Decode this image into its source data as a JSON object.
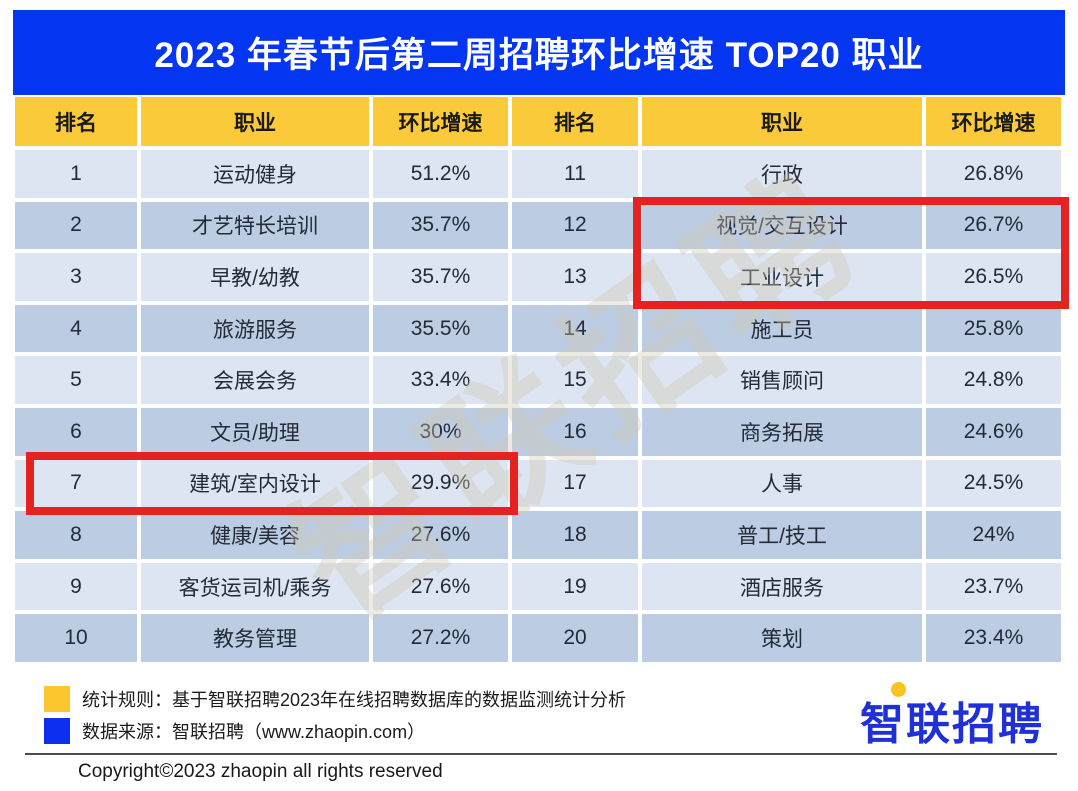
{
  "title": "2023 年春节后第二周招聘环比增速 TOP20 职业",
  "table": {
    "headers": [
      "排名",
      "职业",
      "环比增速",
      "排名",
      "职业",
      "环比增速"
    ],
    "left_rows": [
      {
        "rank": "1",
        "job": "运动健身",
        "growth": "51.2%"
      },
      {
        "rank": "2",
        "job": "才艺特长培训",
        "growth": "35.7%"
      },
      {
        "rank": "3",
        "job": "早教/幼教",
        "growth": "35.7%"
      },
      {
        "rank": "4",
        "job": "旅游服务",
        "growth": "35.5%"
      },
      {
        "rank": "5",
        "job": "会展会务",
        "growth": "33.4%"
      },
      {
        "rank": "6",
        "job": "文员/助理",
        "growth": "30%"
      },
      {
        "rank": "7",
        "job": "建筑/室内设计",
        "growth": "29.9%"
      },
      {
        "rank": "8",
        "job": "健康/美容",
        "growth": "27.6%"
      },
      {
        "rank": "9",
        "job": "客货运司机/乘务",
        "growth": "27.6%"
      },
      {
        "rank": "10",
        "job": "教务管理",
        "growth": "27.2%"
      }
    ],
    "right_rows": [
      {
        "rank": "11",
        "job": "行政",
        "growth": "26.8%"
      },
      {
        "rank": "12",
        "job": "视觉/交互设计",
        "growth": "26.7%"
      },
      {
        "rank": "13",
        "job": "工业设计",
        "growth": "26.5%"
      },
      {
        "rank": "14",
        "job": "施工员",
        "growth": "25.8%"
      },
      {
        "rank": "15",
        "job": "销售顾问",
        "growth": "24.8%"
      },
      {
        "rank": "16",
        "job": "商务拓展",
        "growth": "24.6%"
      },
      {
        "rank": "17",
        "job": "人事",
        "growth": "24.5%"
      },
      {
        "rank": "18",
        "job": "普工/技工",
        "growth": "24%"
      },
      {
        "rank": "19",
        "job": "酒店服务",
        "growth": "23.7%"
      },
      {
        "rank": "20",
        "job": "策划",
        "growth": "23.4%"
      }
    ]
  },
  "highlights": [
    "建筑/室内设计 29.9%",
    "视觉/交互设计 26.7%",
    "工业设计 26.5%"
  ],
  "watermark": {
    "text": "智联招聘"
  },
  "footer": {
    "legend": [
      {
        "swatch_color": "#fcc62f",
        "text": "统计规则：基于智联招聘2023年在线招聘数据库的数据监测统计分析"
      },
      {
        "swatch_color": "#0d2ff0",
        "text": "数据来源：智联招聘（www.zhaopin.com）"
      }
    ],
    "logo_text": "智联招聘",
    "copyright": "Copyright©2023 zhaopin all rights reserved"
  },
  "colors": {
    "title_bar": "#0435f0",
    "header_row": "#fbca3b",
    "row_light": "#dce5f1",
    "row_dark": "#bccde3",
    "highlight_border": "#e42320",
    "logo_blue": "#2030d8",
    "logo_yellow": "#fcc21f"
  },
  "chart_data": {
    "type": "table",
    "title": "2023 年春节后第二周招聘环比增速 TOP20 职业",
    "columns": [
      "排名",
      "职业",
      "环比增速"
    ],
    "rows": [
      [
        1,
        "运动健身",
        "51.2%"
      ],
      [
        2,
        "才艺特长培训",
        "35.7%"
      ],
      [
        3,
        "早教/幼教",
        "35.7%"
      ],
      [
        4,
        "旅游服务",
        "35.5%"
      ],
      [
        5,
        "会展会务",
        "33.4%"
      ],
      [
        6,
        "文员/助理",
        "30%"
      ],
      [
        7,
        "建筑/室内设计",
        "29.9%"
      ],
      [
        8,
        "健康/美容",
        "27.6%"
      ],
      [
        9,
        "客货运司机/乘务",
        "27.6%"
      ],
      [
        10,
        "教务管理",
        "27.2%"
      ],
      [
        11,
        "行政",
        "26.8%"
      ],
      [
        12,
        "视觉/交互设计",
        "26.7%"
      ],
      [
        13,
        "工业设计",
        "26.5%"
      ],
      [
        14,
        "施工员",
        "25.8%"
      ],
      [
        15,
        "销售顾问",
        "24.8%"
      ],
      [
        16,
        "商务拓展",
        "24.6%"
      ],
      [
        17,
        "人事",
        "24.5%"
      ],
      [
        18,
        "普工/技工",
        "24%"
      ],
      [
        19,
        "酒店服务",
        "23.7%"
      ],
      [
        20,
        "策划",
        "23.4%"
      ]
    ],
    "highlighted_rows": [
      7,
      12,
      13
    ]
  }
}
